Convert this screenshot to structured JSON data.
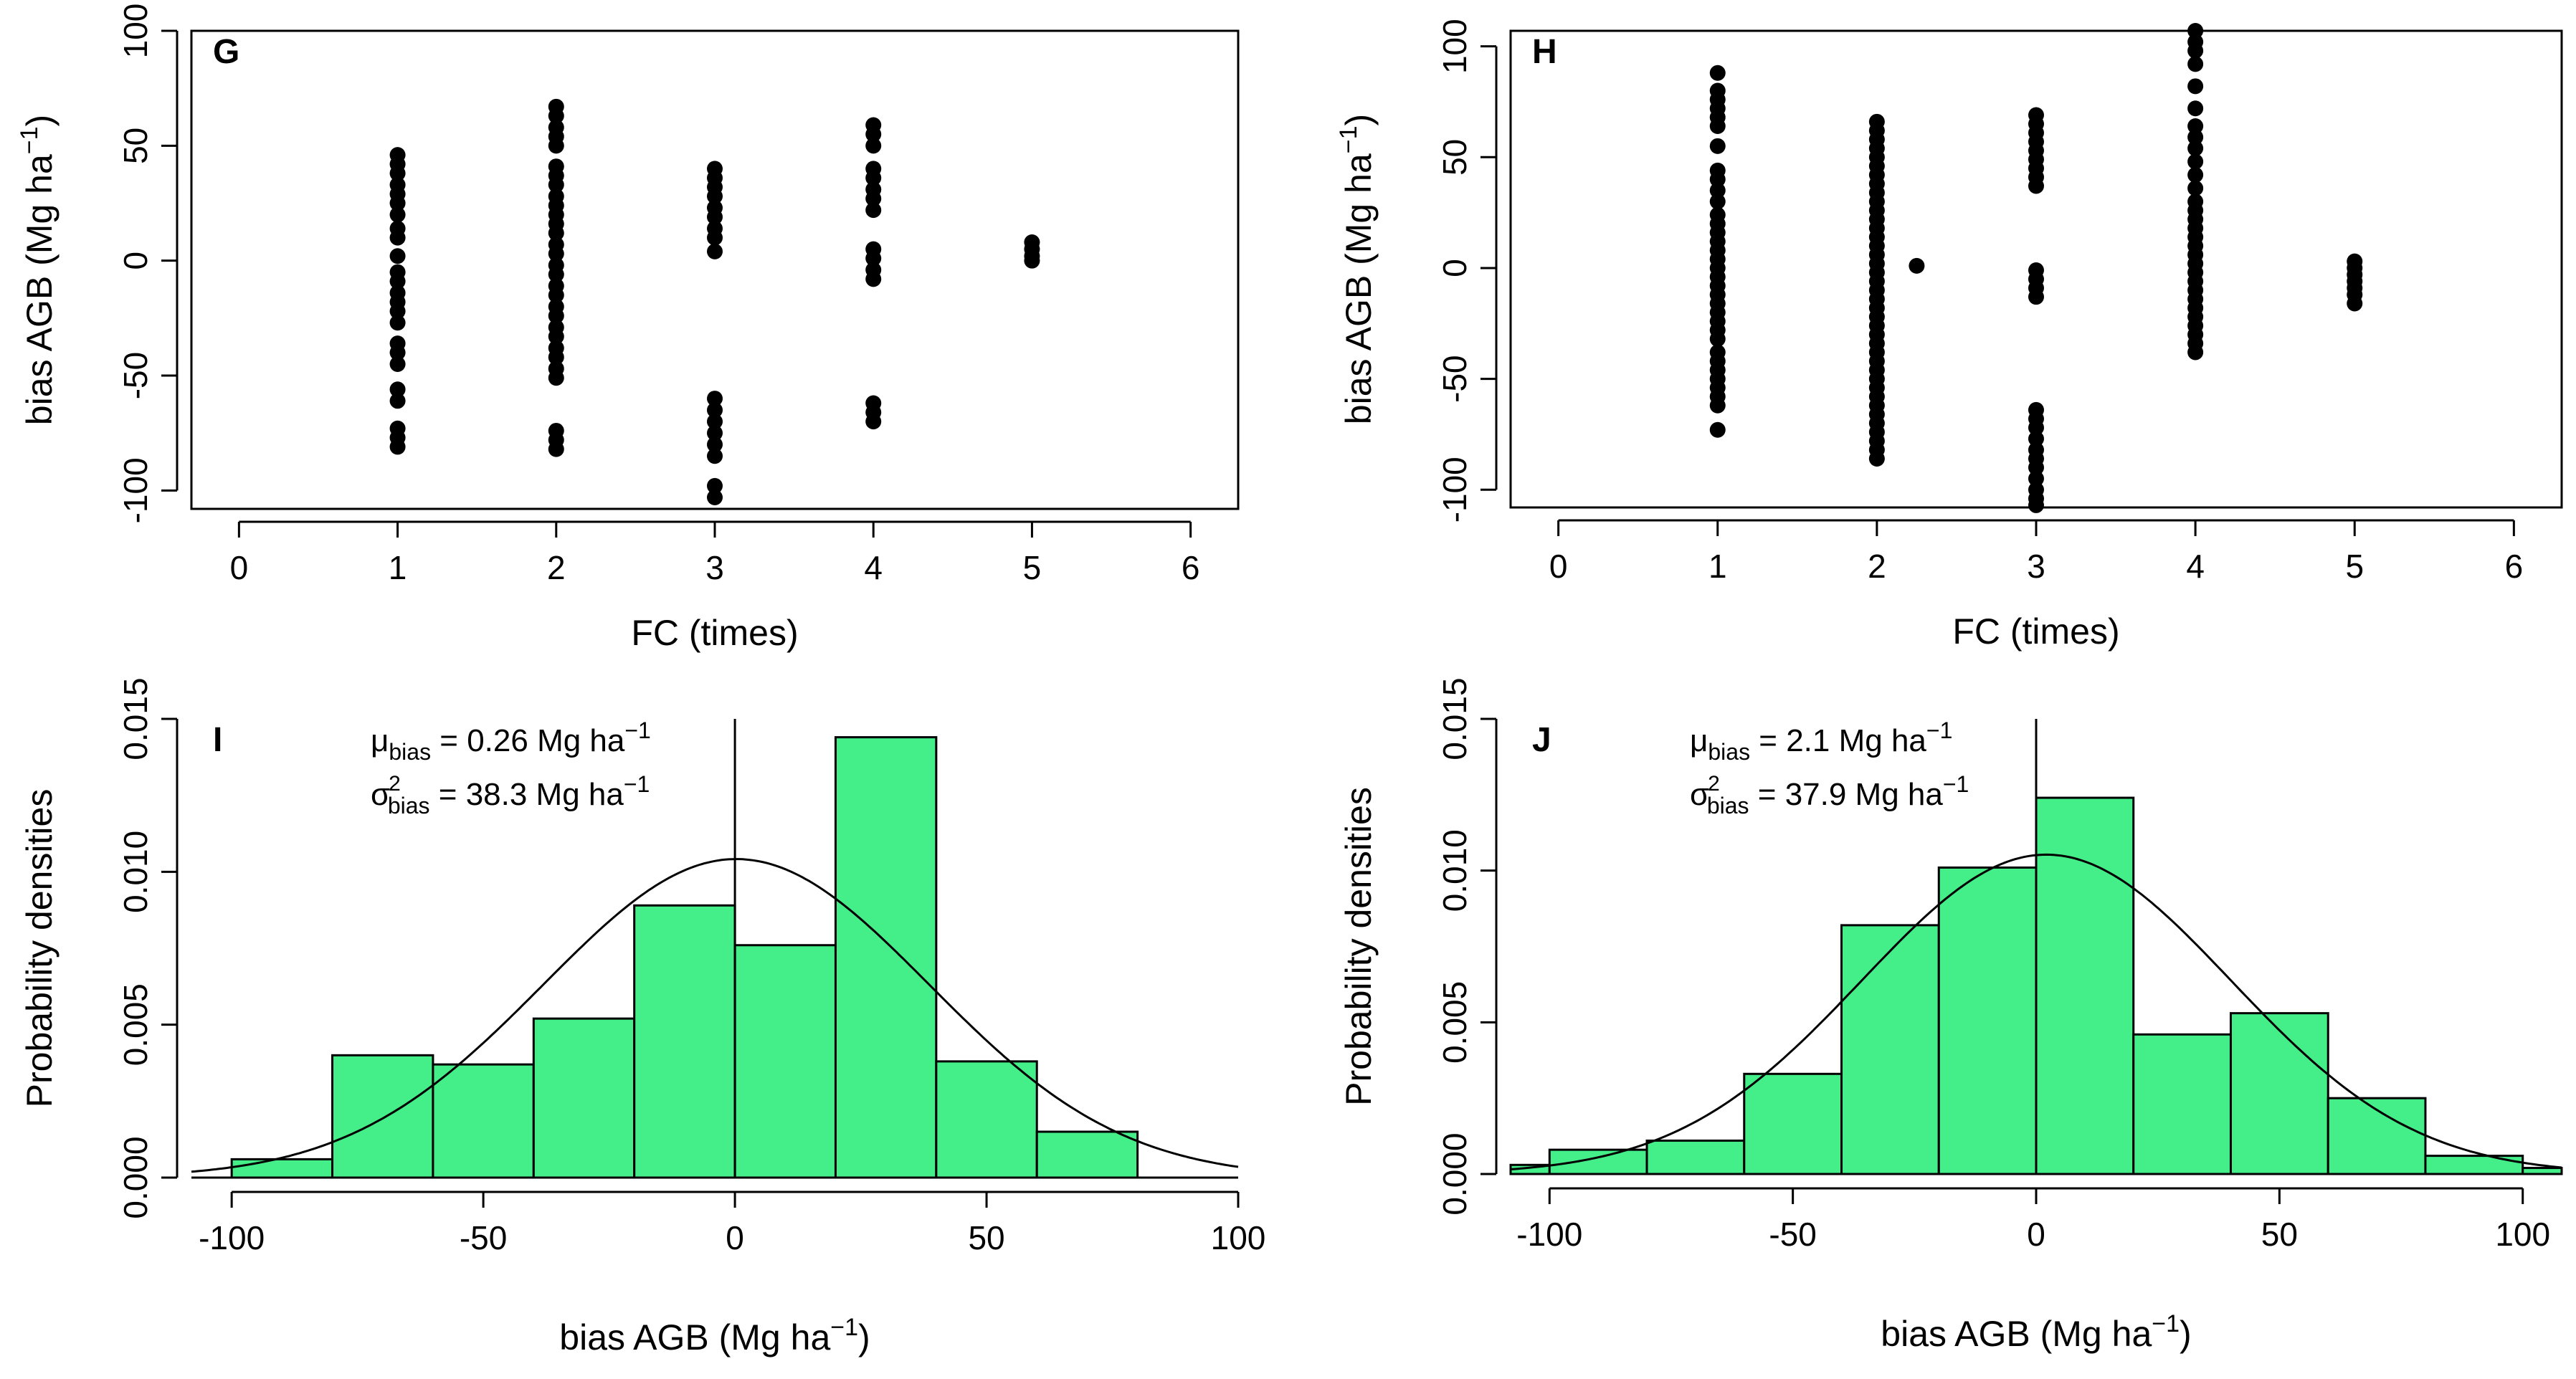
{
  "chart_data": [
    {
      "id": "G",
      "type": "scatter",
      "panel_label": "G",
      "xlabel": "FC (times)",
      "ylabel": "bias AGB (Mg ha⁻¹)",
      "xlim": [
        -0.3,
        6.3
      ],
      "ylim": [
        -108,
        100
      ],
      "xticks": [
        0,
        1,
        2,
        3,
        4,
        5,
        6
      ],
      "yticks": [
        -100,
        -50,
        0,
        50,
        100
      ],
      "points": [
        {
          "x": 1,
          "y": [
            46,
            42,
            38,
            33,
            29,
            25,
            20,
            14,
            10,
            2,
            -5,
            -9,
            -14,
            -18,
            -22,
            -27,
            -36,
            -40,
            -45,
            -56,
            -61,
            -73,
            -77,
            -81
          ]
        },
        {
          "x": 2,
          "y": [
            67,
            63,
            58,
            54,
            50,
            41,
            37,
            33,
            28,
            24,
            20,
            16,
            12,
            7,
            3,
            -2,
            -6,
            -11,
            -15,
            -20,
            -24,
            -29,
            -33,
            -38,
            -42,
            -47,
            -51,
            -74,
            -78,
            -82
          ]
        },
        {
          "x": 3,
          "y": [
            40,
            36,
            32,
            28,
            23,
            19,
            14,
            10,
            4,
            -60,
            -65,
            -70,
            -75,
            -80,
            -85,
            -98,
            -103
          ]
        },
        {
          "x": 4,
          "y": [
            59,
            55,
            50,
            40,
            36,
            31,
            27,
            22,
            5,
            1,
            -4,
            -8,
            -62,
            -66,
            -70
          ]
        },
        {
          "x": 5,
          "y": [
            8,
            5,
            2,
            0
          ]
        }
      ]
    },
    {
      "id": "H",
      "type": "scatter",
      "panel_label": "H",
      "xlabel": "FC (times)",
      "ylabel": "bias AGB (Mg ha⁻¹)",
      "xlim": [
        -0.3,
        6.3
      ],
      "ylim": [
        -108,
        107
      ],
      "xticks": [
        0,
        1,
        2,
        3,
        4,
        5,
        6
      ],
      "yticks": [
        -100,
        -50,
        0,
        50,
        100
      ],
      "points": [
        {
          "x": 1,
          "y": [
            88,
            80,
            76,
            72,
            68,
            64,
            55,
            44,
            40,
            35,
            30,
            24,
            20,
            16,
            12,
            8,
            4,
            0,
            -4,
            -8,
            -12,
            -16,
            -20,
            -24,
            -28,
            -32,
            -38,
            -42,
            -46,
            -50,
            -54,
            -58,
            -62,
            -73
          ]
        },
        {
          "x": 2,
          "y": [
            66,
            62,
            58,
            54,
            50,
            46,
            42,
            38,
            34,
            30,
            26,
            22,
            18,
            14,
            10,
            6,
            2,
            -2,
            -6,
            -10,
            -14,
            -18,
            -22,
            -26,
            -30,
            -34,
            -38,
            -42,
            -46,
            -50,
            -54,
            -58,
            -62,
            -66,
            -70,
            -74,
            -78,
            -82,
            -86
          ]
        },
        {
          "x": 2.25,
          "y": [
            1
          ]
        },
        {
          "x": 3,
          "y": [
            69,
            65,
            61,
            57,
            53,
            49,
            45,
            41,
            37,
            -1,
            -5,
            -9,
            -13,
            -64,
            -68,
            -72,
            -77,
            -82,
            -86,
            -90,
            -95,
            -100,
            -104,
            -107
          ]
        },
        {
          "x": 4,
          "y": [
            107,
            102,
            98,
            92,
            82,
            72,
            64,
            59,
            54,
            48,
            42,
            36,
            30,
            26,
            22,
            18,
            14,
            10,
            6,
            2,
            -2,
            -6,
            -10,
            -14,
            -18,
            -22,
            -26,
            -30,
            -34,
            -38
          ]
        },
        {
          "x": 5,
          "y": [
            3,
            0,
            -3,
            -6,
            -9,
            -12,
            -16
          ]
        }
      ]
    },
    {
      "id": "I",
      "type": "bar",
      "panel_label": "I",
      "xlabel": "bias AGB (Mg ha⁻¹)",
      "ylabel": "Probability densities",
      "xlim": [
        -108,
        100
      ],
      "ylim": [
        0,
        0.015
      ],
      "xticks": [
        -100,
        -50,
        0,
        50,
        100
      ],
      "yticks": [
        "0.000",
        "0.005",
        "0.010",
        "0.015"
      ],
      "bin_edges": [
        -100,
        -80,
        -60,
        -40,
        -20,
        0,
        20,
        40,
        60,
        80
      ],
      "values": [
        0.0006,
        0.004,
        0.0037,
        0.0052,
        0.0089,
        0.0076,
        0.0144,
        0.0038,
        0.0015
      ],
      "normal_curve": {
        "mean": 0.26,
        "sd": 38.3
      },
      "mean_line_x": 0,
      "annotations": {
        "mu_text": "= 0.26 Mg ha",
        "sigma_text": "= 38.3 Mg ha"
      }
    },
    {
      "id": "J",
      "type": "bar",
      "panel_label": "J",
      "xlabel": "bias AGB (Mg ha⁻¹)",
      "ylabel": "Probability densities",
      "xlim": [
        -108,
        108
      ],
      "ylim": [
        0,
        0.015
      ],
      "xticks": [
        -100,
        -50,
        0,
        50,
        100
      ],
      "yticks": [
        "0.000",
        "0.005",
        "0.010",
        "0.015"
      ],
      "bin_edges": [
        -108,
        -100,
        -80,
        -60,
        -40,
        -20,
        0,
        20,
        40,
        60,
        80,
        100,
        108
      ],
      "values": [
        0.0003,
        0.0008,
        0.0011,
        0.0033,
        0.0082,
        0.0101,
        0.0124,
        0.0046,
        0.0053,
        0.0025,
        0.0006,
        0.0002
      ],
      "normal_curve": {
        "mean": 2.1,
        "sd": 37.9
      },
      "mean_line_x": 0,
      "annotations": {
        "mu_text": "= 2.1 Mg ha",
        "sigma_text": "= 37.9 Mg ha"
      }
    }
  ]
}
